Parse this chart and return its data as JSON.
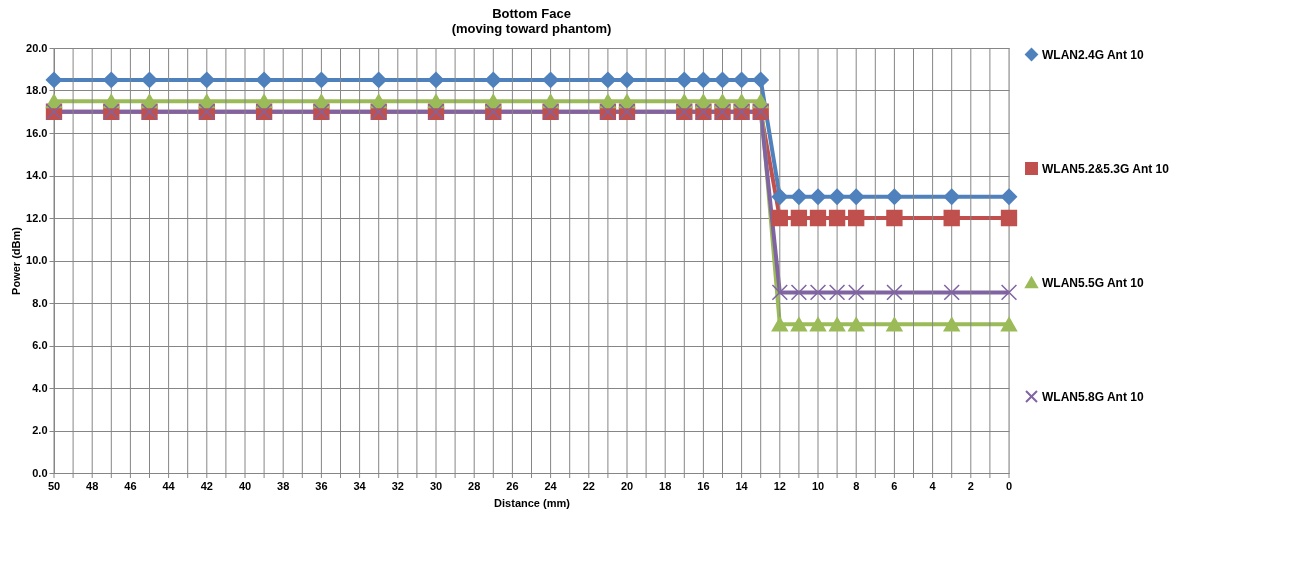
{
  "chart_data": {
    "type": "line",
    "title": "Bottom Face",
    "subtitle": "(moving toward phantom)",
    "xlabel": "Distance (mm)",
    "ylabel": "Power (dBm)",
    "x": [
      50,
      47,
      45,
      42,
      39,
      36,
      33,
      30,
      27,
      24,
      21,
      20,
      17,
      16,
      15,
      14,
      13,
      12,
      11,
      10,
      9,
      8,
      6,
      3,
      0
    ],
    "series": [
      {
        "name": "WLAN2.4G Ant 10",
        "color": "#4f81bd",
        "marker": "diamond",
        "values": [
          18.5,
          18.5,
          18.5,
          18.5,
          18.5,
          18.5,
          18.5,
          18.5,
          18.5,
          18.5,
          18.5,
          18.5,
          18.5,
          18.5,
          18.5,
          18.5,
          18.5,
          13.0,
          13.0,
          13.0,
          13.0,
          13.0,
          13.0,
          13.0,
          13.0
        ]
      },
      {
        "name": "WLAN5.2&5.3G Ant 10",
        "color": "#c0504d",
        "marker": "square",
        "values": [
          17.0,
          17.0,
          17.0,
          17.0,
          17.0,
          17.0,
          17.0,
          17.0,
          17.0,
          17.0,
          17.0,
          17.0,
          17.0,
          17.0,
          17.0,
          17.0,
          17.0,
          12.0,
          12.0,
          12.0,
          12.0,
          12.0,
          12.0,
          12.0,
          12.0
        ]
      },
      {
        "name": "WLAN5.5G Ant 10",
        "color": "#9bbb59",
        "marker": "triangle",
        "values": [
          17.5,
          17.5,
          17.5,
          17.5,
          17.5,
          17.5,
          17.5,
          17.5,
          17.5,
          17.5,
          17.5,
          17.5,
          17.5,
          17.5,
          17.5,
          17.5,
          17.5,
          7.0,
          7.0,
          7.0,
          7.0,
          7.0,
          7.0,
          7.0,
          7.0
        ]
      },
      {
        "name": "WLAN5.8G Ant 10",
        "color": "#8064a2",
        "marker": "cross",
        "values": [
          17.0,
          17.0,
          17.0,
          17.0,
          17.0,
          17.0,
          17.0,
          17.0,
          17.0,
          17.0,
          17.0,
          17.0,
          17.0,
          17.0,
          17.0,
          17.0,
          17.0,
          8.5,
          8.5,
          8.5,
          8.5,
          8.5,
          8.5,
          8.5,
          8.5
        ]
      }
    ],
    "xlim": [
      50,
      0
    ],
    "xticks": [
      50,
      {
        "value": 49,
        "label": null
      },
      48,
      {
        "value": 47,
        "label": null
      },
      46,
      {
        "value": 45,
        "label": null
      },
      44,
      {
        "value": 43,
        "label": null
      },
      42,
      {
        "value": 41,
        "label": null
      },
      40,
      {
        "value": 39,
        "label": null
      },
      38,
      {
        "value": 37,
        "label": null
      },
      36,
      {
        "value": 35,
        "label": null
      },
      34,
      {
        "value": 33,
        "label": null
      },
      32,
      {
        "value": 31,
        "label": null
      },
      30,
      {
        "value": 29,
        "label": null
      },
      28,
      {
        "value": 27,
        "label": null
      },
      26,
      {
        "value": 25,
        "label": null
      },
      24,
      {
        "value": 23,
        "label": null
      },
      22,
      {
        "value": 21,
        "label": null
      },
      20,
      {
        "value": 19,
        "label": null
      },
      18,
      {
        "value": 17,
        "label": null
      },
      16,
      {
        "value": 15,
        "label": null
      },
      14,
      {
        "value": 13,
        "label": null
      },
      12,
      {
        "value": 11,
        "label": null
      },
      10,
      {
        "value": 9,
        "label": null
      },
      8,
      {
        "value": 7,
        "label": null
      },
      6,
      {
        "value": 5,
        "label": null
      },
      4,
      {
        "value": 3,
        "label": null
      },
      2,
      {
        "value": 1,
        "label": null
      },
      0
    ],
    "ylim": [
      0,
      20
    ],
    "yticks": [
      {
        "value": 0,
        "label": "0.0"
      },
      {
        "value": 2,
        "label": "2.0"
      },
      {
        "value": 4,
        "label": "4.0"
      },
      {
        "value": 6,
        "label": "6.0"
      },
      {
        "value": 8,
        "label": "8.0"
      },
      {
        "value": 10,
        "label": "10.0"
      },
      {
        "value": 12,
        "label": "12.0"
      },
      {
        "value": 14,
        "label": "14.0"
      },
      {
        "value": 16,
        "label": "16.0"
      },
      {
        "value": 18,
        "label": "18.0"
      },
      {
        "value": 20,
        "label": "20.0"
      }
    ],
    "grid": true,
    "legend": "right",
    "line_style": "solid"
  }
}
